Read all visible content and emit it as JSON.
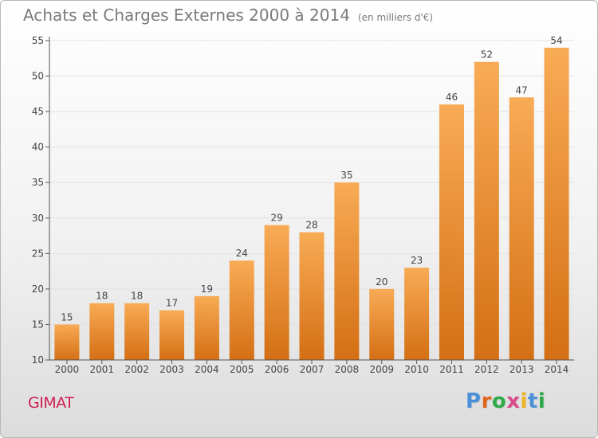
{
  "header": {
    "title": "Achats et Charges Externes 2000 à 2014",
    "unit": "(en milliers d'€)"
  },
  "footer": {
    "place": "GIMAT",
    "logo": "Proxiti",
    "logo_colors": [
      "#4a90d9",
      "#e0661f",
      "#2eaa4a",
      "#d94a8a",
      "#f0b21e",
      "#4a90d9",
      "#2eaa4a"
    ]
  },
  "colors": {
    "bar_top": "#f8ab55",
    "bar_bottom": "#d46f14",
    "axis": "#555555",
    "grid": "#e2e2e2",
    "text": "#444444"
  },
  "chart_data": {
    "type": "bar",
    "categories": [
      "2000",
      "2001",
      "2002",
      "2003",
      "2004",
      "2005",
      "2006",
      "2007",
      "2008",
      "2009",
      "2010",
      "2011",
      "2012",
      "2013",
      "2014"
    ],
    "values": [
      15,
      18,
      18,
      17,
      19,
      24,
      29,
      28,
      35,
      20,
      23,
      46,
      52,
      47,
      54
    ],
    "ylim": [
      10,
      55
    ],
    "yticks": [
      10,
      15,
      20,
      25,
      30,
      35,
      40,
      45,
      50,
      55
    ],
    "grid": true,
    "data_labels": true
  }
}
